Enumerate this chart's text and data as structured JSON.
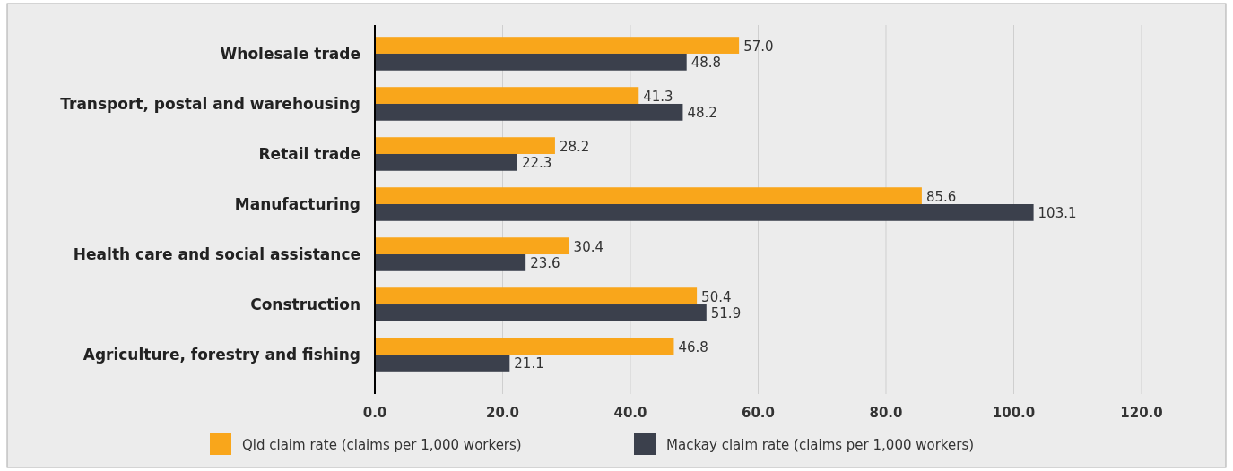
{
  "chart_data": {
    "type": "bar",
    "orientation": "horizontal",
    "categories": [
      "Wholesale trade",
      "Transport, postal and warehousing",
      "Retail trade",
      "Manufacturing",
      "Health care and social assistance",
      "Construction",
      "Agriculture, forestry and fishing"
    ],
    "series": [
      {
        "name": "Qld claim rate (claims per 1,000 workers)",
        "color": "#f9a61b",
        "values": [
          57.0,
          41.3,
          28.2,
          85.6,
          30.4,
          50.4,
          46.8
        ],
        "value_labels": [
          "57.0",
          "41.3",
          "28.2",
          "85.6",
          "30.4",
          "50.4",
          "46.8"
        ]
      },
      {
        "name": "Mackay claim rate (claims per 1,000 workers)",
        "color": "#3b404c",
        "values": [
          48.8,
          48.2,
          22.3,
          103.1,
          23.6,
          51.9,
          21.1
        ],
        "value_labels": [
          "48.8",
          "48.2",
          "22.3",
          "103.1",
          "23.6",
          "51.9",
          "21.1"
        ]
      }
    ],
    "xlim": [
      0,
      120
    ],
    "xticks": [
      {
        "value": 0,
        "label": "0.0"
      },
      {
        "value": 20,
        "label": "20.0"
      },
      {
        "value": 40,
        "label": "40.0"
      },
      {
        "value": 60,
        "label": "60.0"
      },
      {
        "value": 80,
        "label": "80.0"
      },
      {
        "value": 100,
        "label": "100.0"
      },
      {
        "value": 120,
        "label": "120.0"
      }
    ],
    "grid": "x",
    "legend": "bottom"
  }
}
